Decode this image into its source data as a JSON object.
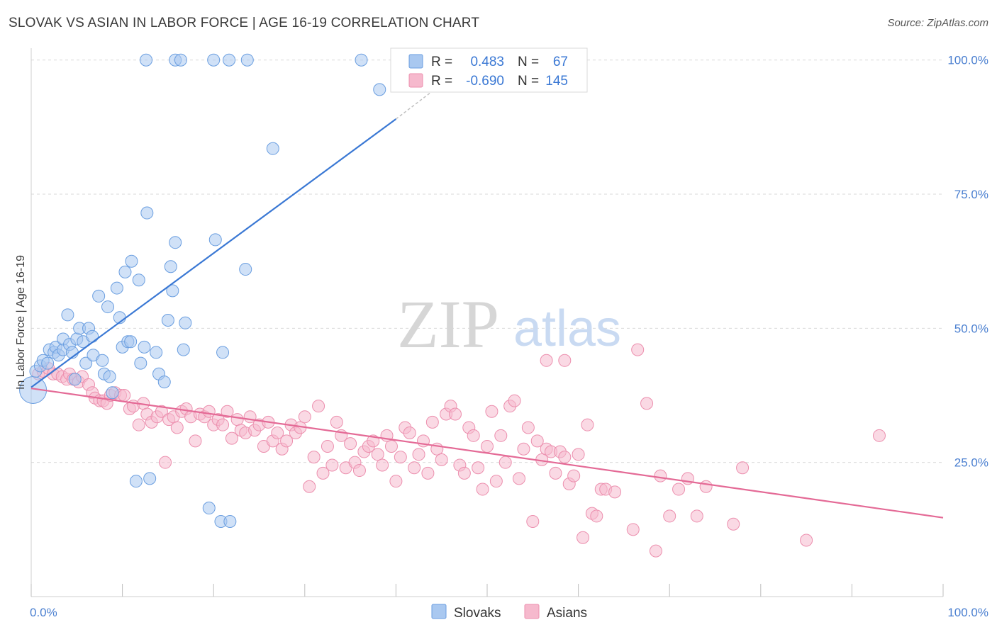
{
  "title": "SLOVAK VS ASIAN IN LABOR FORCE | AGE 16-19 CORRELATION CHART",
  "source": "Source: ZipAtlas.com",
  "watermark": {
    "zip": "ZIP",
    "atlas": "atlas"
  },
  "colors": {
    "slovak_fill": "#a9c8f0",
    "slovak_stroke": "#6a9ee0",
    "slovak_line": "#3a78d4",
    "asian_fill": "#f6b9cd",
    "asian_stroke": "#ec8fae",
    "asian_line": "#e46a96",
    "value_blue": "#3a78d4",
    "grid": "#d9d9d9"
  },
  "legend_top": [
    {
      "r_label": "R =",
      "r_value": "0.483",
      "n_label": "N =",
      "n_value": "67"
    },
    {
      "r_label": "R =",
      "r_value": "-0.690",
      "n_label": "N =",
      "n_value": "145"
    }
  ],
  "legend_bottom": [
    "Slovaks",
    "Asians"
  ],
  "chart_data": {
    "type": "scatter",
    "title": "SLOVAK VS ASIAN IN LABOR FORCE | AGE 16-19 CORRELATION CHART",
    "xlabel": "",
    "ylabel": "In Labor Force | Age 16-19",
    "xlim": [
      0,
      100
    ],
    "ylim": [
      0,
      103
    ],
    "x_tick_labels": [
      "0.0%",
      "100.0%"
    ],
    "y_ticks": [
      25,
      50,
      75,
      100
    ],
    "y_tick_labels": [
      "25.0%",
      "50.0%",
      "75.0%",
      "100.0%"
    ],
    "grid": true,
    "legend_position": "top-center",
    "series": [
      {
        "name": "Slovaks",
        "trend": {
          "x": [
            0,
            40
          ],
          "y": [
            39.0,
            89.0
          ]
        },
        "trend_dashed": {
          "x": [
            40,
            45
          ],
          "y": [
            89.0,
            95.5
          ]
        },
        "points": [
          {
            "x": 0.2,
            "y": 38.5,
            "big": true
          },
          {
            "x": 0.5,
            "y": 42.0
          },
          {
            "x": 1.0,
            "y": 43.0
          },
          {
            "x": 1.3,
            "y": 44.0
          },
          {
            "x": 1.8,
            "y": 43.5
          },
          {
            "x": 2.0,
            "y": 46.0
          },
          {
            "x": 2.5,
            "y": 45.5
          },
          {
            "x": 2.7,
            "y": 46.5
          },
          {
            "x": 3.0,
            "y": 45.0
          },
          {
            "x": 3.5,
            "y": 46.0
          },
          {
            "x": 3.5,
            "y": 48.0
          },
          {
            "x": 4.0,
            "y": 52.5
          },
          {
            "x": 4.2,
            "y": 47.0
          },
          {
            "x": 4.5,
            "y": 45.5
          },
          {
            "x": 4.8,
            "y": 40.5
          },
          {
            "x": 5.0,
            "y": 48.0
          },
          {
            "x": 5.3,
            "y": 50.0
          },
          {
            "x": 5.7,
            "y": 47.5
          },
          {
            "x": 6.0,
            "y": 43.5
          },
          {
            "x": 6.3,
            "y": 50.0
          },
          {
            "x": 6.7,
            "y": 48.5
          },
          {
            "x": 6.8,
            "y": 45.0
          },
          {
            "x": 7.4,
            "y": 56.0
          },
          {
            "x": 7.8,
            "y": 44.0
          },
          {
            "x": 8.0,
            "y": 41.5
          },
          {
            "x": 8.4,
            "y": 54.0
          },
          {
            "x": 8.6,
            "y": 41.0
          },
          {
            "x": 8.9,
            "y": 38.0
          },
          {
            "x": 9.4,
            "y": 57.5
          },
          {
            "x": 9.7,
            "y": 52.0
          },
          {
            "x": 10.0,
            "y": 46.5
          },
          {
            "x": 10.3,
            "y": 60.5
          },
          {
            "x": 10.6,
            "y": 47.5
          },
          {
            "x": 10.9,
            "y": 47.5
          },
          {
            "x": 11.0,
            "y": 62.5
          },
          {
            "x": 11.5,
            "y": 21.5
          },
          {
            "x": 11.8,
            "y": 59.0
          },
          {
            "x": 12.0,
            "y": 43.5
          },
          {
            "x": 12.4,
            "y": 46.5
          },
          {
            "x": 12.7,
            "y": 71.5
          },
          {
            "x": 13.0,
            "y": 22.0
          },
          {
            "x": 13.7,
            "y": 45.5
          },
          {
            "x": 14.0,
            "y": 41.5
          },
          {
            "x": 14.6,
            "y": 40.0
          },
          {
            "x": 15.0,
            "y": 51.5
          },
          {
            "x": 15.3,
            "y": 61.5
          },
          {
            "x": 15.5,
            "y": 57.0
          },
          {
            "x": 15.8,
            "y": 66.0
          },
          {
            "x": 16.7,
            "y": 46.0
          },
          {
            "x": 16.9,
            "y": 51.0
          },
          {
            "x": 19.5,
            "y": 16.5
          },
          {
            "x": 20.2,
            "y": 66.5
          },
          {
            "x": 20.8,
            "y": 14.0
          },
          {
            "x": 21.0,
            "y": 45.5
          },
          {
            "x": 21.8,
            "y": 14.0
          },
          {
            "x": 23.5,
            "y": 61.0
          },
          {
            "x": 26.5,
            "y": 83.5
          },
          {
            "x": 12.6,
            "y": 100
          },
          {
            "x": 15.8,
            "y": 100
          },
          {
            "x": 16.4,
            "y": 100
          },
          {
            "x": 20.0,
            "y": 100
          },
          {
            "x": 21.7,
            "y": 100
          },
          {
            "x": 23.7,
            "y": 100
          },
          {
            "x": 36.2,
            "y": 100
          },
          {
            "x": 38.2,
            "y": 94.5
          }
        ]
      },
      {
        "name": "Asians",
        "trend": {
          "x": [
            0,
            100
          ],
          "y": [
            38.8,
            14.7
          ]
        },
        "points": [
          {
            "x": 0.8,
            "y": 41.5
          },
          {
            "x": 1.3,
            "y": 42.0
          },
          {
            "x": 1.9,
            "y": 42.5
          },
          {
            "x": 2.4,
            "y": 41.5
          },
          {
            "x": 2.9,
            "y": 41.5
          },
          {
            "x": 3.4,
            "y": 41.0
          },
          {
            "x": 3.9,
            "y": 40.5
          },
          {
            "x": 4.2,
            "y": 41.5
          },
          {
            "x": 4.6,
            "y": 40.5
          },
          {
            "x": 5.2,
            "y": 40.0
          },
          {
            "x": 5.6,
            "y": 41.0
          },
          {
            "x": 6.3,
            "y": 39.5
          },
          {
            "x": 6.7,
            "y": 38.0
          },
          {
            "x": 7.0,
            "y": 37.0
          },
          {
            "x": 7.5,
            "y": 36.5
          },
          {
            "x": 7.9,
            "y": 36.5
          },
          {
            "x": 8.3,
            "y": 36.0
          },
          {
            "x": 8.7,
            "y": 37.5
          },
          {
            "x": 9.2,
            "y": 38.0
          },
          {
            "x": 9.8,
            "y": 37.5
          },
          {
            "x": 10.2,
            "y": 37.5
          },
          {
            "x": 10.8,
            "y": 35.0
          },
          {
            "x": 11.2,
            "y": 35.5
          },
          {
            "x": 11.8,
            "y": 32.0
          },
          {
            "x": 12.3,
            "y": 36.0
          },
          {
            "x": 12.7,
            "y": 34.0
          },
          {
            "x": 13.2,
            "y": 32.5
          },
          {
            "x": 13.8,
            "y": 33.5
          },
          {
            "x": 14.3,
            "y": 34.5
          },
          {
            "x": 14.7,
            "y": 25.0
          },
          {
            "x": 15.1,
            "y": 33.0
          },
          {
            "x": 15.6,
            "y": 33.5
          },
          {
            "x": 16.0,
            "y": 31.5
          },
          {
            "x": 16.5,
            "y": 34.5
          },
          {
            "x": 17.0,
            "y": 35.0
          },
          {
            "x": 17.5,
            "y": 33.5
          },
          {
            "x": 18.0,
            "y": 29.0
          },
          {
            "x": 18.5,
            "y": 34.0
          },
          {
            "x": 19.0,
            "y": 33.5
          },
          {
            "x": 19.5,
            "y": 34.5
          },
          {
            "x": 20.0,
            "y": 32.0
          },
          {
            "x": 20.5,
            "y": 33.0
          },
          {
            "x": 21.0,
            "y": 32.0
          },
          {
            "x": 21.5,
            "y": 34.5
          },
          {
            "x": 22.0,
            "y": 29.5
          },
          {
            "x": 22.6,
            "y": 33.0
          },
          {
            "x": 23.0,
            "y": 31.0
          },
          {
            "x": 23.5,
            "y": 30.5
          },
          {
            "x": 24.0,
            "y": 33.5
          },
          {
            "x": 24.5,
            "y": 31.0
          },
          {
            "x": 25.0,
            "y": 32.0
          },
          {
            "x": 25.5,
            "y": 28.0
          },
          {
            "x": 26.0,
            "y": 32.5
          },
          {
            "x": 26.5,
            "y": 29.0
          },
          {
            "x": 27.0,
            "y": 30.5
          },
          {
            "x": 27.5,
            "y": 27.5
          },
          {
            "x": 28.0,
            "y": 29.0
          },
          {
            "x": 28.5,
            "y": 32.0
          },
          {
            "x": 29.0,
            "y": 30.5
          },
          {
            "x": 29.5,
            "y": 31.5
          },
          {
            "x": 30.0,
            "y": 33.5
          },
          {
            "x": 30.5,
            "y": 20.5
          },
          {
            "x": 31.0,
            "y": 26.0
          },
          {
            "x": 31.5,
            "y": 35.5
          },
          {
            "x": 32.0,
            "y": 23.0
          },
          {
            "x": 32.5,
            "y": 28.0
          },
          {
            "x": 33.0,
            "y": 24.5
          },
          {
            "x": 33.5,
            "y": 32.5
          },
          {
            "x": 34.0,
            "y": 30.0
          },
          {
            "x": 34.5,
            "y": 24.0
          },
          {
            "x": 35.0,
            "y": 28.5
          },
          {
            "x": 35.5,
            "y": 25.0
          },
          {
            "x": 36.0,
            "y": 23.5
          },
          {
            "x": 36.5,
            "y": 27.0
          },
          {
            "x": 37.0,
            "y": 28.0
          },
          {
            "x": 37.5,
            "y": 29.0
          },
          {
            "x": 38.0,
            "y": 26.5
          },
          {
            "x": 38.5,
            "y": 24.5
          },
          {
            "x": 39.0,
            "y": 30.0
          },
          {
            "x": 39.5,
            "y": 28.0
          },
          {
            "x": 40.0,
            "y": 21.5
          },
          {
            "x": 40.5,
            "y": 26.0
          },
          {
            "x": 41.0,
            "y": 31.5
          },
          {
            "x": 41.5,
            "y": 30.5
          },
          {
            "x": 42.0,
            "y": 24.0
          },
          {
            "x": 42.5,
            "y": 26.5
          },
          {
            "x": 43.0,
            "y": 29.0
          },
          {
            "x": 43.5,
            "y": 23.0
          },
          {
            "x": 44.0,
            "y": 32.5
          },
          {
            "x": 44.5,
            "y": 27.5
          },
          {
            "x": 45.0,
            "y": 25.5
          },
          {
            "x": 45.5,
            "y": 34.0
          },
          {
            "x": 46.0,
            "y": 35.5
          },
          {
            "x": 46.5,
            "y": 34.0
          },
          {
            "x": 47.0,
            "y": 24.5
          },
          {
            "x": 47.5,
            "y": 23.0
          },
          {
            "x": 48.0,
            "y": 31.5
          },
          {
            "x": 48.5,
            "y": 30.0
          },
          {
            "x": 49.0,
            "y": 24.0
          },
          {
            "x": 49.5,
            "y": 20.0
          },
          {
            "x": 50.0,
            "y": 28.0
          },
          {
            "x": 50.5,
            "y": 34.5
          },
          {
            "x": 51.0,
            "y": 21.5
          },
          {
            "x": 51.5,
            "y": 30.0
          },
          {
            "x": 52.0,
            "y": 25.0
          },
          {
            "x": 52.5,
            "y": 35.5
          },
          {
            "x": 53.0,
            "y": 36.5
          },
          {
            "x": 53.5,
            "y": 22.0
          },
          {
            "x": 54.0,
            "y": 27.5
          },
          {
            "x": 54.5,
            "y": 31.5
          },
          {
            "x": 55.0,
            "y": 14.0
          },
          {
            "x": 55.5,
            "y": 29.0
          },
          {
            "x": 56.0,
            "y": 25.5
          },
          {
            "x": 56.5,
            "y": 27.5
          },
          {
            "x": 57.0,
            "y": 27.0
          },
          {
            "x": 57.5,
            "y": 23.0
          },
          {
            "x": 58.0,
            "y": 27.0
          },
          {
            "x": 58.5,
            "y": 26.0
          },
          {
            "x": 59.0,
            "y": 21.0
          },
          {
            "x": 59.5,
            "y": 22.5
          },
          {
            "x": 60.0,
            "y": 26.5
          },
          {
            "x": 60.5,
            "y": 11.0
          },
          {
            "x": 61.0,
            "y": 32.0
          },
          {
            "x": 61.5,
            "y": 15.5
          },
          {
            "x": 62.0,
            "y": 15.0
          },
          {
            "x": 62.5,
            "y": 20.0
          },
          {
            "x": 63.0,
            "y": 20.0
          },
          {
            "x": 64.0,
            "y": 19.5
          },
          {
            "x": 66.0,
            "y": 12.5
          },
          {
            "x": 67.5,
            "y": 36.0
          },
          {
            "x": 68.5,
            "y": 8.5
          },
          {
            "x": 69.0,
            "y": 22.5
          },
          {
            "x": 70.0,
            "y": 15.0
          },
          {
            "x": 71.0,
            "y": 20.0
          },
          {
            "x": 72.0,
            "y": 22.0
          },
          {
            "x": 73.0,
            "y": 15.0
          },
          {
            "x": 74.0,
            "y": 20.5
          },
          {
            "x": 77.0,
            "y": 13.5
          },
          {
            "x": 78.0,
            "y": 24.0
          },
          {
            "x": 85.0,
            "y": 10.5
          },
          {
            "x": 56.5,
            "y": 44.0
          },
          {
            "x": 58.5,
            "y": 44.0
          },
          {
            "x": 66.5,
            "y": 46.0
          },
          {
            "x": 93.0,
            "y": 30.0
          }
        ]
      }
    ]
  }
}
